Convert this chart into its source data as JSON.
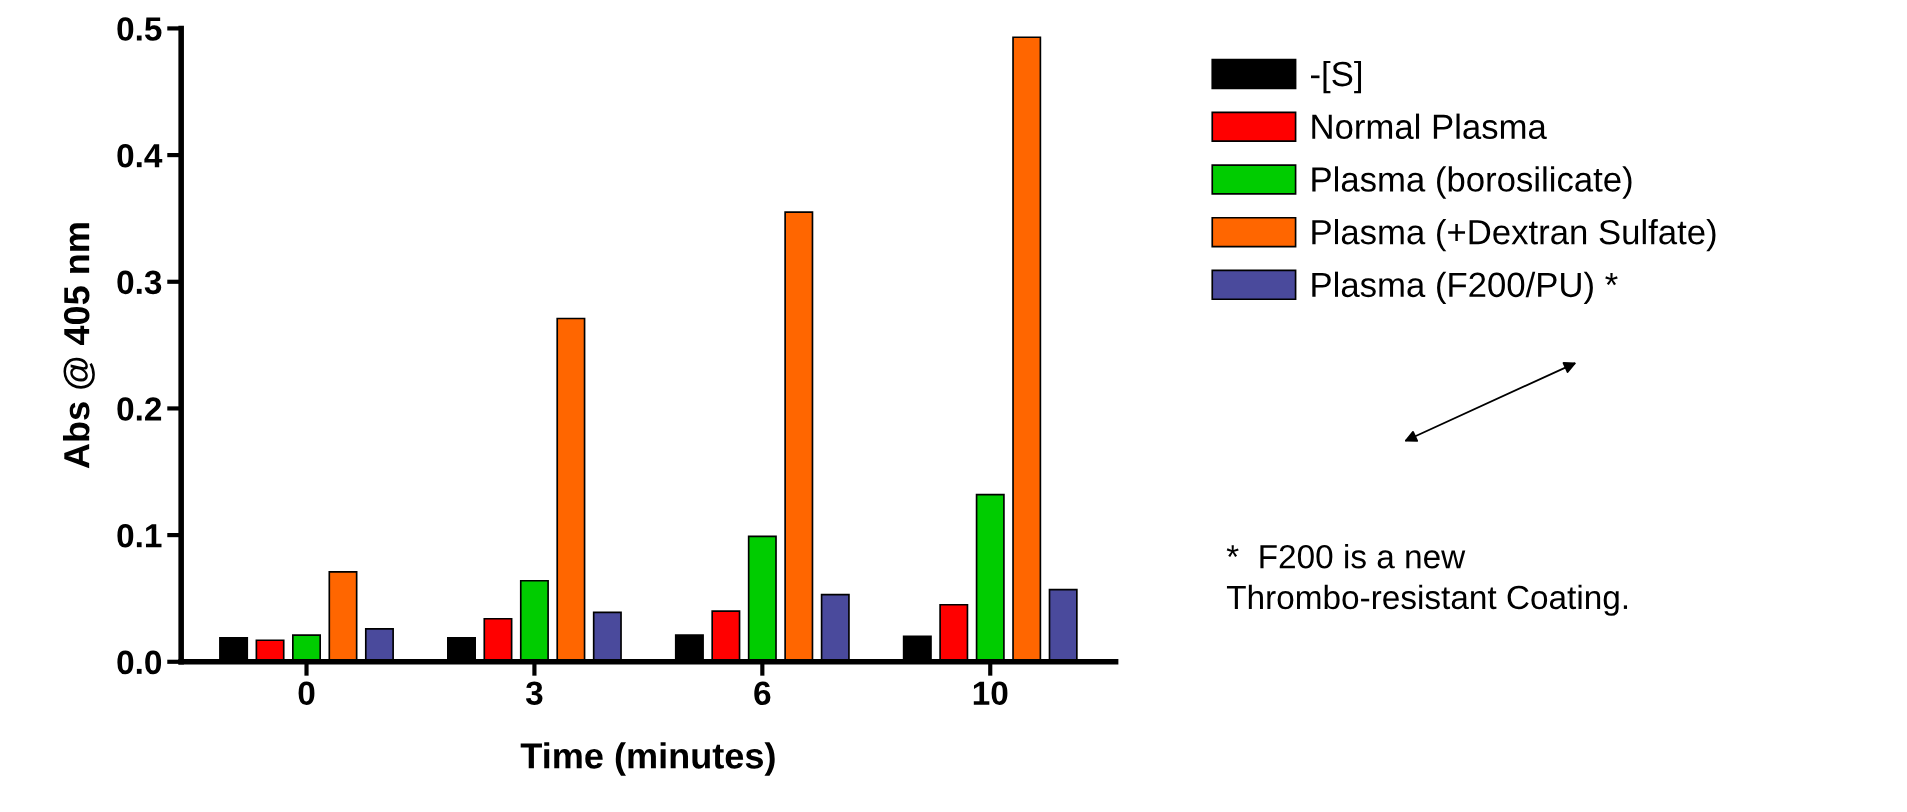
{
  "chart_data": {
    "type": "bar",
    "xlabel": "Time (minutes)",
    "ylabel": "Abs @ 405 nm",
    "categories": [
      "0",
      "3",
      "6",
      "10"
    ],
    "series": [
      {
        "name": "-[S]",
        "color": "#000000",
        "values": [
          0.019,
          0.019,
          0.021,
          0.02
        ]
      },
      {
        "name": "Normal Plasma",
        "color": "#ff0000",
        "values": [
          0.017,
          0.034,
          0.04,
          0.045
        ]
      },
      {
        "name": "Plasma (borosilicate)",
        "color": "#00cc00",
        "values": [
          0.021,
          0.064,
          0.099,
          0.132
        ]
      },
      {
        "name": "Plasma (+Dextran Sulfate)",
        "color": "#ff6600",
        "values": [
          0.071,
          0.271,
          0.355,
          0.493
        ]
      },
      {
        "name": "Plasma (F200/PU) *",
        "color": "#4a4a9c",
        "values": [
          0.026,
          0.039,
          0.053,
          0.057
        ]
      }
    ],
    "ylim": [
      0,
      0.5
    ],
    "yticks": [
      {
        "value": 0,
        "label": "0.0"
      },
      0.1,
      0.2,
      0.3,
      0.4,
      0.5
    ],
    "grid": false,
    "legend": "right",
    "annotations": [
      "*  F200 is a new\nThrombo-resistant Coating."
    ]
  }
}
